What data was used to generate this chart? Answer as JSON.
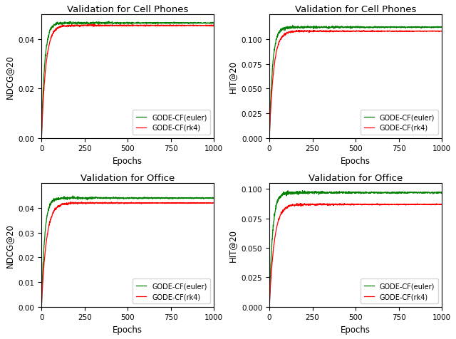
{
  "titles": [
    "Validation for Cell Phones",
    "Validation for Cell Phones",
    "Validation for Office",
    "Validation for Office"
  ],
  "ylabels": [
    "NDCG@20",
    "HIT@20",
    "NDCG@20",
    "HIT@20"
  ],
  "xlabel": "Epochs",
  "legend_labels": [
    "GODE-CF(euler)",
    "GODE-CF(rk4)"
  ],
  "colors": {
    "euler": "#008000",
    "rk4": "#ff0000"
  },
  "xticks": [
    0,
    250,
    500,
    750,
    1000
  ],
  "subplots": [
    {
      "euler_final": 0.0465,
      "rk4_final": 0.0455,
      "euler_rate": 0.055,
      "rk4_rate": 0.04,
      "noise_euler": 0.00035,
      "noise_rk4": 0.00025,
      "ylim": [
        0.0,
        0.05
      ],
      "yticks": [
        0.0,
        0.02,
        0.04
      ]
    },
    {
      "euler_final": 0.112,
      "rk4_final": 0.108,
      "euler_rate": 0.055,
      "rk4_rate": 0.04,
      "noise_euler": 0.0009,
      "noise_rk4": 0.0006,
      "ylim": [
        0.0,
        0.125
      ],
      "yticks": [
        0.0,
        0.025,
        0.05,
        0.075,
        0.1
      ]
    },
    {
      "euler_final": 0.044,
      "rk4_final": 0.042,
      "euler_rate": 0.055,
      "rk4_rate": 0.035,
      "noise_euler": 0.00035,
      "noise_rk4": 0.00025,
      "ylim": [
        0.0,
        0.05
      ],
      "yticks": [
        0.0,
        0.01,
        0.02,
        0.03,
        0.04
      ]
    },
    {
      "euler_final": 0.097,
      "rk4_final": 0.087,
      "euler_rate": 0.055,
      "rk4_rate": 0.035,
      "noise_euler": 0.0009,
      "noise_rk4": 0.0006,
      "ylim": [
        0.0,
        0.105
      ],
      "yticks": [
        0.0,
        0.025,
        0.05,
        0.075,
        0.1
      ]
    }
  ]
}
